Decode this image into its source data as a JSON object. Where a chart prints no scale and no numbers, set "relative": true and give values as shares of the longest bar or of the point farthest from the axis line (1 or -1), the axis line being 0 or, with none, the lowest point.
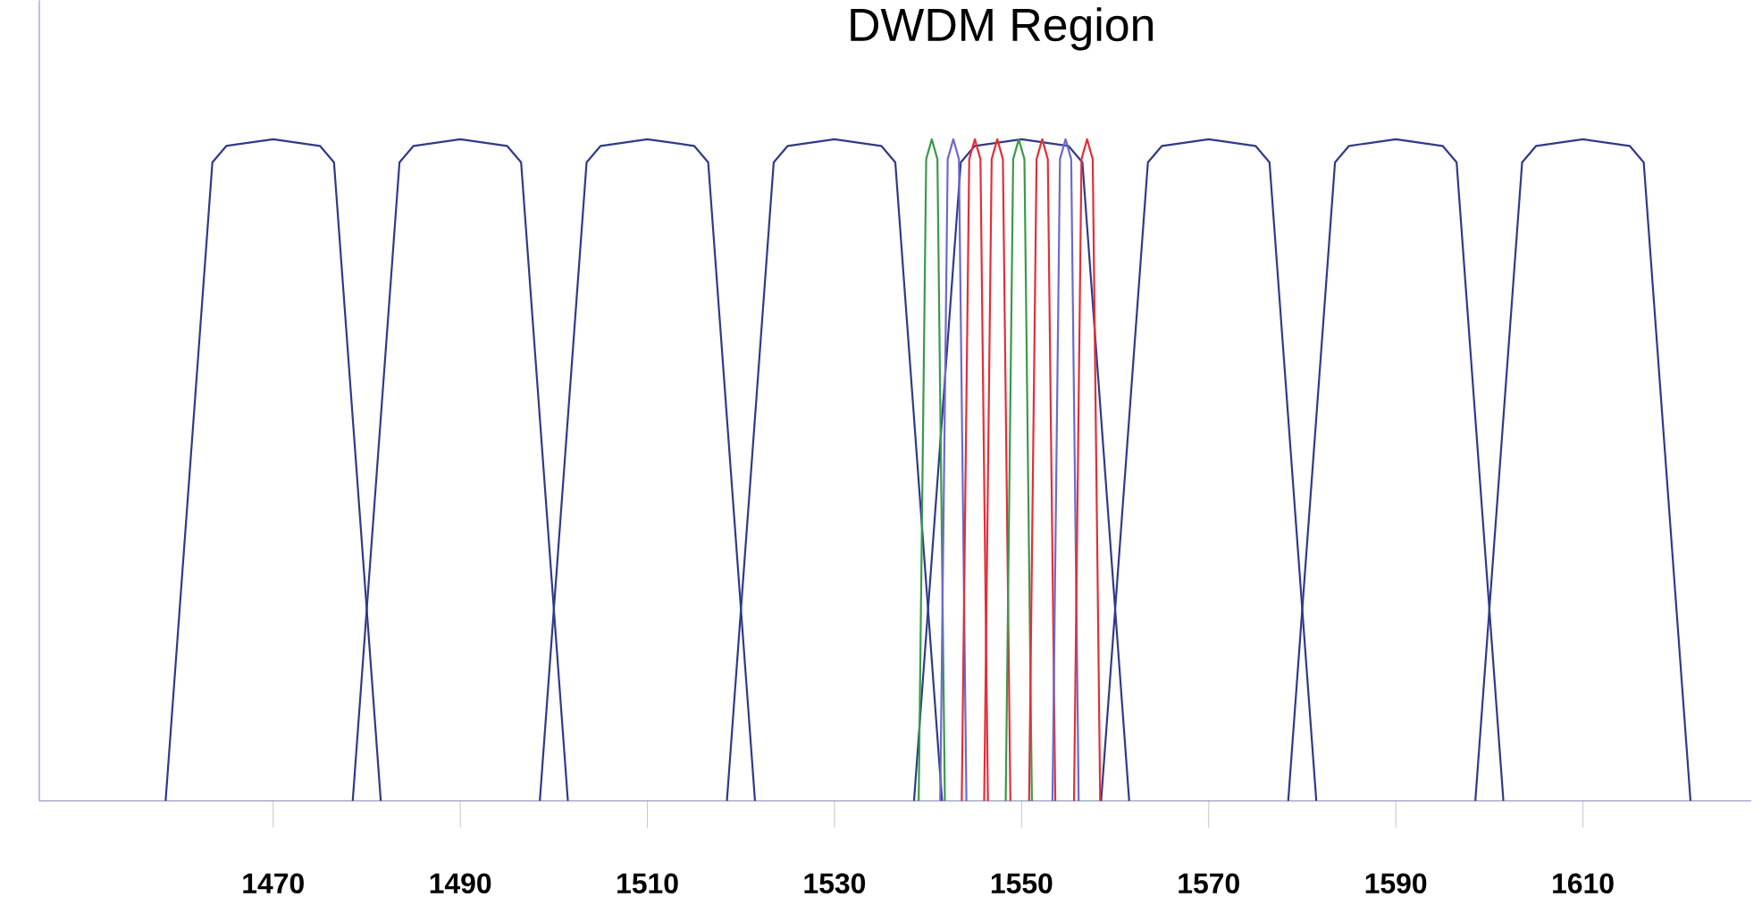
{
  "chart_data": {
    "type": "line",
    "title": "DWDM Region",
    "relative": true,
    "marker": "none",
    "line_style": "solid",
    "xlim": [
      1445,
      1628
    ],
    "xticks": [
      1470,
      1490,
      1510,
      1530,
      1550,
      1570,
      1590,
      1610
    ],
    "series": [
      {
        "color": "#2f3a8a",
        "x": [
          1458.5,
          1463.5,
          1465,
          1470,
          1475,
          1476.5,
          1481.5
        ],
        "values": [
          0,
          0.965,
          0.99,
          1,
          0.99,
          0.965,
          0
        ]
      },
      {
        "color": "#2f3a8a",
        "x": [
          1478.5,
          1483.5,
          1485,
          1490,
          1495,
          1496.5,
          1501.5
        ],
        "values": [
          0,
          0.965,
          0.99,
          1,
          0.99,
          0.965,
          0
        ]
      },
      {
        "color": "#2f3a8a",
        "x": [
          1498.5,
          1503.5,
          1505,
          1510,
          1515,
          1516.5,
          1521.5
        ],
        "values": [
          0,
          0.965,
          0.99,
          1,
          0.99,
          0.965,
          0
        ]
      },
      {
        "color": "#2f3a8a",
        "x": [
          1518.5,
          1523.5,
          1525,
          1530,
          1535,
          1536.5,
          1541.5
        ],
        "values": [
          0,
          0.965,
          0.99,
          1,
          0.99,
          0.965,
          0
        ]
      },
      {
        "color": "#2f3a8a",
        "x": [
          1538.5,
          1543.5,
          1545,
          1550,
          1555,
          1556.5,
          1561.5
        ],
        "values": [
          0,
          0.965,
          0.99,
          1,
          0.99,
          0.965,
          0
        ]
      },
      {
        "color": "#2f3a8a",
        "x": [
          1558.5,
          1563.5,
          1565,
          1570,
          1575,
          1576.5,
          1581.5
        ],
        "values": [
          0,
          0.965,
          0.99,
          1,
          0.99,
          0.965,
          0
        ]
      },
      {
        "color": "#2f3a8a",
        "x": [
          1578.5,
          1583.5,
          1585,
          1590,
          1595,
          1596.5,
          1601.5
        ],
        "values": [
          0,
          0.965,
          0.99,
          1,
          0.99,
          0.965,
          0
        ]
      },
      {
        "color": "#2f3a8a",
        "x": [
          1598.5,
          1603.5,
          1605,
          1610,
          1615,
          1616.5,
          1621.5
        ],
        "values": [
          0,
          0.965,
          0.99,
          1,
          0.99,
          0.965,
          0
        ]
      },
      {
        "color": "#3a9a4a",
        "x": [
          1539.0,
          1539.8,
          1540.4,
          1541.0,
          1541.8
        ],
        "values": [
          0,
          0.97,
          1,
          0.97,
          0
        ]
      },
      {
        "color": "#6a6ad0",
        "x": [
          1541.3,
          1542.1,
          1542.7,
          1543.3,
          1544.1
        ],
        "values": [
          0,
          0.97,
          1,
          0.97,
          0
        ]
      },
      {
        "color": "#e0303a",
        "x": [
          1543.6,
          1544.4,
          1545.0,
          1545.6,
          1546.4
        ],
        "values": [
          0,
          0.97,
          1,
          0.97,
          0
        ]
      },
      {
        "color": "#e0303a",
        "x": [
          1546.0,
          1546.8,
          1547.4,
          1548.0,
          1548.8
        ],
        "values": [
          0,
          0.97,
          1,
          0.97,
          0
        ]
      },
      {
        "color": "#3a9a4a",
        "x": [
          1548.3,
          1549.1,
          1549.7,
          1550.3,
          1551.1
        ],
        "values": [
          0,
          0.97,
          1,
          0.97,
          0
        ]
      },
      {
        "color": "#e0303a",
        "x": [
          1550.8,
          1551.6,
          1552.2,
          1552.8,
          1553.6
        ],
        "values": [
          0,
          0.97,
          1,
          0.97,
          0
        ]
      },
      {
        "color": "#6a6ad0",
        "x": [
          1553.3,
          1554.1,
          1554.7,
          1555.3,
          1556.1
        ],
        "values": [
          0,
          0.97,
          1,
          0.97,
          0
        ]
      },
      {
        "color": "#e0303a",
        "x": [
          1555.6,
          1556.4,
          1557.0,
          1557.6,
          1558.4
        ],
        "values": [
          0,
          0.97,
          1,
          0.97,
          0
        ]
      }
    ]
  }
}
